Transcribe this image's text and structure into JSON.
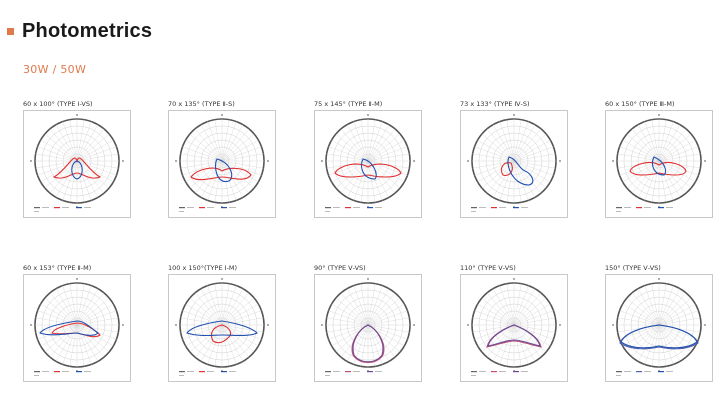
{
  "page": {
    "title": "Photometrics",
    "subtitle": "30W / 50W"
  },
  "colors": {
    "accent": "#e07a4a",
    "series_a": "#e03030",
    "series_b": "#2050b0",
    "series_c": "#6a4a9a"
  },
  "charts": [
    {
      "label": "60 x 100°  (TYPE Ⅰ-VS)",
      "shape": "wide-low"
    },
    {
      "label": "70 x 135°  (TYPE Ⅱ-S)",
      "shape": "asym-low"
    },
    {
      "label": "75 x 145°   (TYPE Ⅱ-M)",
      "shape": "mid"
    },
    {
      "label": "73 x 133°  (TYPE Ⅳ-S)",
      "shape": "skew"
    },
    {
      "label": "60 x 150°  (TYPE Ⅲ-M)",
      "shape": "mid2"
    },
    {
      "label": "60 x 153°  (TYPE Ⅱ-M)",
      "shape": "flat-left"
    },
    {
      "label": "100 x 150°(TYPE Ⅰ-M)",
      "shape": "flat-wide"
    },
    {
      "label": "90°   (TYPE Ⅴ-VS)",
      "shape": "drop"
    },
    {
      "label": "110°   (TYPE Ⅴ-VS)",
      "shape": "drop-wide"
    },
    {
      "label": "150°   (TYPE Ⅴ-VS)",
      "shape": "bowl"
    }
  ]
}
